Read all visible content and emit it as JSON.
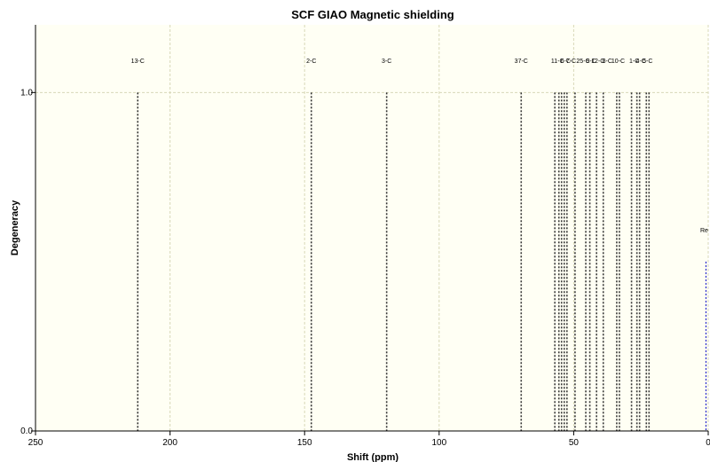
{
  "chart_data": {
    "type": "bar",
    "title": "SCF GIAO Magnetic shielding",
    "xlabel": "Shift (ppm)",
    "ylabel": "Degeneracy",
    "xlim": [
      250,
      0
    ],
    "ylim": [
      0.0,
      1.2
    ],
    "x_ticks": [
      "250",
      "200",
      "150",
      "100",
      "50",
      "0"
    ],
    "y_ticks": [
      "0.0",
      "1.0"
    ],
    "grid": true,
    "background_color": "#fffff4",
    "grid_color": "#d8d8b8",
    "peak_color": "#333333",
    "reference_color": "#2222cc",
    "peaks": [
      {
        "shift": 212.0,
        "degeneracy": 1.0,
        "label": "13-C"
      },
      {
        "shift": 147.5,
        "degeneracy": 1.0,
        "label": "2-C"
      },
      {
        "shift": 119.5,
        "degeneracy": 1.0,
        "label": "3-C"
      },
      {
        "shift": 69.5,
        "degeneracy": 1.0,
        "label": "37-C"
      },
      {
        "shift": 57.0,
        "degeneracy": 1.0,
        "label": ""
      },
      {
        "shift": 55.5,
        "degeneracy": 1.0,
        "label": ""
      },
      {
        "shift": 54.5,
        "degeneracy": 1.0,
        "label": ""
      },
      {
        "shift": 53.5,
        "degeneracy": 1.0,
        "label": ""
      },
      {
        "shift": 52.5,
        "degeneracy": 1.0,
        "label": ""
      },
      {
        "shift": 49.5,
        "degeneracy": 1.0,
        "label": ""
      },
      {
        "shift": 45.5,
        "degeneracy": 1.0,
        "label": ""
      },
      {
        "shift": 44.0,
        "degeneracy": 1.0,
        "label": ""
      },
      {
        "shift": 41.5,
        "degeneracy": 1.0,
        "label": ""
      },
      {
        "shift": 39.0,
        "degeneracy": 1.0,
        "label": ""
      },
      {
        "shift": 34.0,
        "degeneracy": 1.0,
        "label": ""
      },
      {
        "shift": 33.0,
        "degeneracy": 1.0,
        "label": ""
      },
      {
        "shift": 28.5,
        "degeneracy": 1.0,
        "label": ""
      },
      {
        "shift": 26.5,
        "degeneracy": 1.0,
        "label": ""
      },
      {
        "shift": 25.5,
        "degeneracy": 1.0,
        "label": ""
      },
      {
        "shift": 23.0,
        "degeneracy": 1.0,
        "label": ""
      },
      {
        "shift": 22.0,
        "degeneracy": 1.0,
        "label": ""
      }
    ],
    "cluster_labels": [
      {
        "shift": 56.0,
        "text": "11-C"
      },
      {
        "shift": 53.0,
        "text": "6-C"
      },
      {
        "shift": 51.0,
        "text": "7-C"
      },
      {
        "shift": 46.5,
        "text": "25-C"
      },
      {
        "shift": 43.5,
        "text": "9-C"
      },
      {
        "shift": 41.0,
        "text": "12-C"
      },
      {
        "shift": 37.5,
        "text": "8-C"
      },
      {
        "shift": 33.5,
        "text": "10-C"
      },
      {
        "shift": 27.5,
        "text": "1-C"
      },
      {
        "shift": 25.0,
        "text": "4-C"
      },
      {
        "shift": 22.5,
        "text": "5-C"
      }
    ],
    "reference": {
      "shift": 0.5,
      "degeneracy": 0.5,
      "label": "Re"
    }
  }
}
